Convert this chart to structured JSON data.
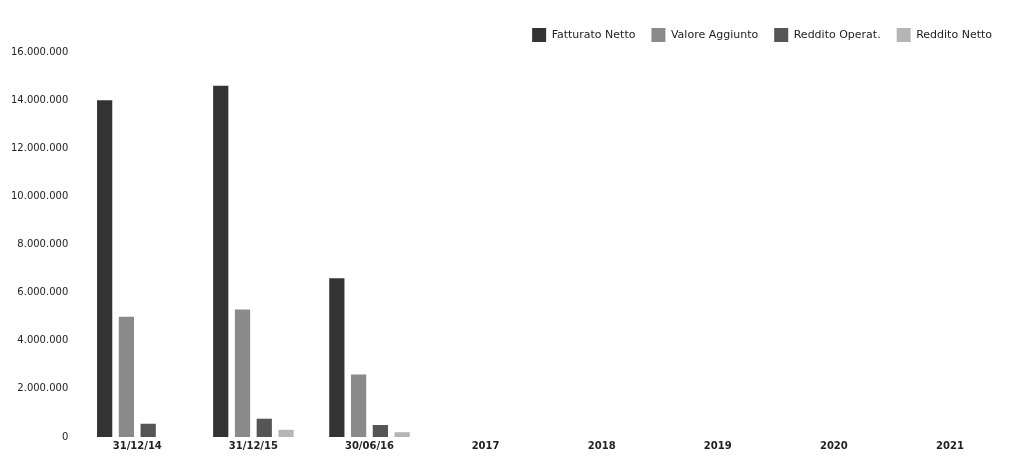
{
  "chart_data": {
    "type": "bar",
    "categories": [
      "31/12/14",
      "31/12/15",
      "30/06/16",
      "2017",
      "2018",
      "2019",
      "2020",
      "2021"
    ],
    "series": [
      {
        "name": "Fatturato Netto",
        "color": "#333333",
        "values": [
          14000000,
          14600000,
          6600000,
          null,
          null,
          null,
          null,
          null
        ]
      },
      {
        "name": "Valore Aggiunto",
        "color": "#8a8a8a",
        "values": [
          5000000,
          5300000,
          2600000,
          null,
          null,
          null,
          null,
          null
        ]
      },
      {
        "name": "Reddito Operat.",
        "color": "#555555",
        "values": [
          550000,
          760000,
          500000,
          null,
          null,
          null,
          null,
          null
        ]
      },
      {
        "name": "Reddito Netto",
        "color": "#b5b5b5",
        "values": [
          null,
          300000,
          200000,
          null,
          null,
          null,
          null,
          null
        ]
      }
    ],
    "ylim": [
      0,
      16000000
    ],
    "yticks": [
      0,
      {
        "value": 2000000,
        "label": "2.000.000"
      },
      {
        "value": 4000000,
        "label": "4.000.000"
      },
      {
        "value": 6000000,
        "label": "6.000.000"
      },
      {
        "value": 8000000,
        "label": "8.000.000"
      },
      {
        "value": 10000000,
        "label": "10.000.000"
      },
      {
        "value": 12000000,
        "label": "12.000.000"
      },
      {
        "value": 14000000,
        "label": "14.000.000"
      },
      {
        "value": 16000000,
        "label": "16.000.000"
      }
    ],
    "grid": false,
    "legend": "top"
  }
}
